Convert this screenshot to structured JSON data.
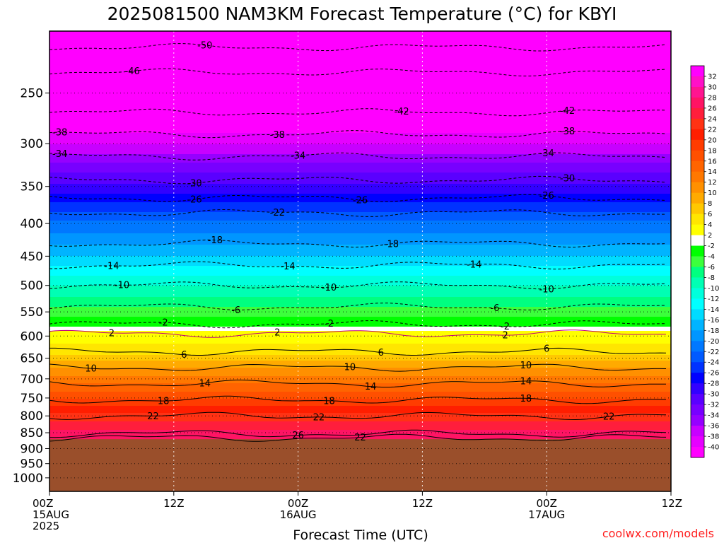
{
  "chart_data": {
    "type": "heatmap",
    "title": "2025081500 NAM3KM Forecast Temperature (°C) for KBYI",
    "xlabel": "Forecast Time (UTC)",
    "ylabel": "",
    "credit": "coolwx.com/models",
    "y_axis": {
      "scale": "log-pressure",
      "range": [
        200,
        1050
      ],
      "ticks": [
        250,
        300,
        350,
        400,
        450,
        500,
        550,
        600,
        650,
        700,
        750,
        800,
        850,
        900,
        950,
        1000
      ]
    },
    "x_axis": {
      "range_hours": [
        0,
        60
      ],
      "ticks": [
        {
          "hour": 0,
          "lines": [
            "00Z",
            "15AUG",
            "2025"
          ]
        },
        {
          "hour": 12,
          "lines": [
            "12Z"
          ]
        },
        {
          "hour": 24,
          "lines": [
            "00Z",
            "16AUG"
          ]
        },
        {
          "hour": 36,
          "lines": [
            "12Z"
          ]
        },
        {
          "hour": 48,
          "lines": [
            "00Z",
            "17AUG"
          ]
        },
        {
          "hour": 60,
          "lines": [
            "12Z"
          ]
        }
      ]
    },
    "grid": true,
    "ground_pressure": 870,
    "ground_color": "#9a4f2b",
    "colorbar": {
      "placement": "right",
      "labels": [
        "32",
        "30",
        "28",
        "26",
        "24",
        "22",
        "20",
        "18",
        "16",
        "14",
        "12",
        "10",
        "8",
        "6",
        "4",
        "2",
        "-2",
        "-4",
        "-6",
        "-8",
        "-10",
        "-12",
        "-14",
        "-16",
        "-18",
        "-20",
        "-22",
        "-24",
        "-26",
        "-28",
        "-30",
        "-32",
        "-34",
        "-36",
        "-38",
        "-40"
      ],
      "colors": [
        "#ff00ff",
        "#ff10c8",
        "#ff1490",
        "#ff1464",
        "#ff1e3c",
        "#ff3214",
        "#ff1e00",
        "#ff3c00",
        "#ff5000",
        "#ff6400",
        "#ff7800",
        "#ff9000",
        "#ffaa00",
        "#ffc800",
        "#ffe600",
        "#ffff00",
        "#ffffff",
        "#00ff00",
        "#3cff3c",
        "#00ff80",
        "#00ffb4",
        "#00ffdc",
        "#00ffff",
        "#00dcff",
        "#00b4ff",
        "#0096ff",
        "#0078ff",
        "#005aff",
        "#0032ff",
        "#0000ff",
        "#3200ff",
        "#5a00ff",
        "#7800ff",
        "#9600ff",
        "#c800ff",
        "#e600ff",
        "#ff00ff"
      ]
    },
    "temperature_profile": [
      {
        "p": 200,
        "t": -54
      },
      {
        "p": 225,
        "t": -50
      },
      {
        "p": 250,
        "t": -46
      },
      {
        "p": 275,
        "t": -42
      },
      {
        "p": 300,
        "t": -38
      },
      {
        "p": 320,
        "t": -34
      },
      {
        "p": 345,
        "t": -30
      },
      {
        "p": 370,
        "t": -26
      },
      {
        "p": 395,
        "t": -22
      },
      {
        "p": 430,
        "t": -18
      },
      {
        "p": 465,
        "t": -14
      },
      {
        "p": 500,
        "t": -10
      },
      {
        "p": 540,
        "t": -6
      },
      {
        "p": 578,
        "t": -2
      },
      {
        "p": 588,
        "t": 2
      },
      {
        "p": 640,
        "t": 6
      },
      {
        "p": 670,
        "t": 10
      },
      {
        "p": 710,
        "t": 14
      },
      {
        "p": 750,
        "t": 18
      },
      {
        "p": 790,
        "t": 22
      },
      {
        "p": 840,
        "t": 26
      },
      {
        "p": 870,
        "t": 28
      }
    ],
    "contours": [
      {
        "value": 50,
        "label": "50",
        "p": 212,
        "label_hours": [
          15
        ]
      },
      {
        "value": 46,
        "label": "46",
        "p": 232,
        "label_hours": [
          8
        ]
      },
      {
        "value": 42,
        "label": "42",
        "p": 268,
        "label_hours": [
          34,
          50
        ]
      },
      {
        "value": 38,
        "label": "38",
        "p": 290,
        "label_hours": [
          1,
          22,
          50
        ]
      },
      {
        "value": 34,
        "label": "34",
        "p": 314,
        "label_hours": [
          1,
          24,
          48
        ]
      },
      {
        "value": 30,
        "label": "30",
        "p": 342,
        "label_hours": [
          14,
          50
        ]
      },
      {
        "value": 26,
        "label": "26",
        "p": 365,
        "label_hours": [
          14,
          30,
          48
        ]
      },
      {
        "value": 22,
        "label": "22",
        "p": 385,
        "label_hours": [
          22
        ]
      },
      {
        "value": 18,
        "label": "18",
        "p": 430,
        "label_hours": [
          16,
          33
        ]
      },
      {
        "value": 14,
        "label": "14",
        "p": 465,
        "label_hours": [
          6,
          23,
          41
        ]
      },
      {
        "value": 10,
        "label": "10",
        "p": 500,
        "label_hours": [
          7,
          27,
          48
        ]
      },
      {
        "value": 6,
        "label": "6",
        "p": 540,
        "label_hours": [
          18,
          43
        ]
      },
      {
        "value": 2,
        "label": "2",
        "p": 575,
        "label_hours": [
          11,
          27,
          44
        ]
      },
      {
        "value": 2,
        "label": "2",
        "p": 595,
        "label_hours": [
          6,
          22,
          44
        ]
      },
      {
        "value": 6,
        "label": "6",
        "p": 635,
        "label_hours": [
          13,
          32,
          48
        ]
      },
      {
        "value": 10,
        "label": "10",
        "p": 672,
        "label_hours": [
          4,
          29,
          46
        ]
      },
      {
        "value": 14,
        "label": "14",
        "p": 712,
        "label_hours": [
          15,
          31,
          46
        ]
      },
      {
        "value": 18,
        "label": "18",
        "p": 755,
        "label_hours": [
          11,
          27,
          46
        ]
      },
      {
        "value": 22,
        "label": "22",
        "p": 800,
        "label_hours": [
          10,
          26,
          54
        ]
      },
      {
        "value": 26,
        "label": "26",
        "p": 853,
        "label_hours": [
          24
        ]
      },
      {
        "value": 22,
        "label": "22",
        "p": 866,
        "label_hours": [
          30
        ]
      }
    ]
  }
}
